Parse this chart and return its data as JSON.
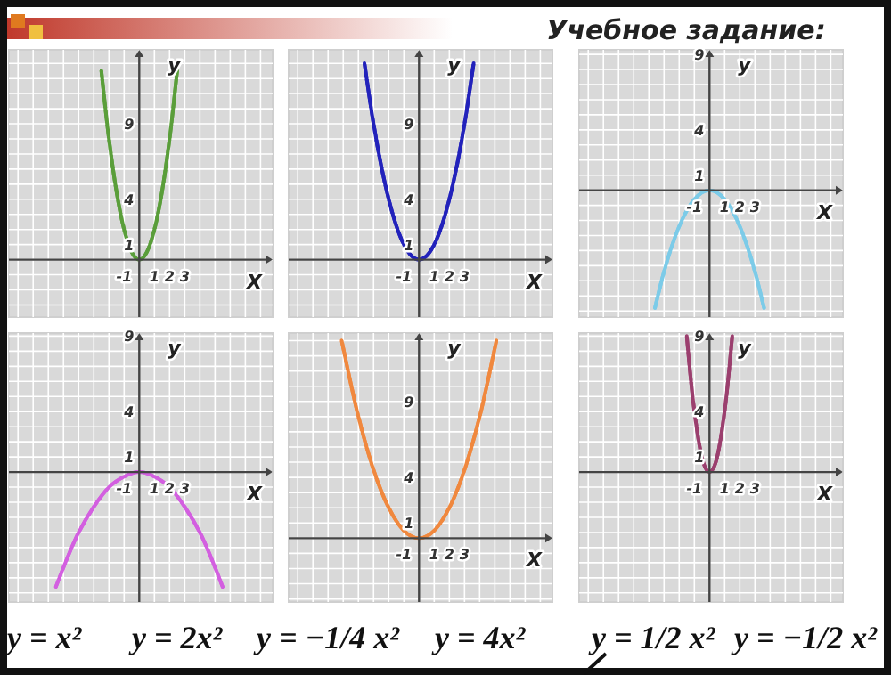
{
  "chart_data": [
    {
      "type": "other",
      "title": "Учебное задание:",
      "annotations": [
        "y = x²",
        "y = 2x²",
        "y = −1/4 x²",
        "y = 4x²",
        "y = 1/2 x²",
        "y = −1/2 x²"
      ]
    },
    {
      "type": "line",
      "xlabel": "X",
      "ylabel": "y",
      "grid": true,
      "xlim": [
        -8.6,
        8.8
      ],
      "ylim": [
        -3.8,
        13.9
      ],
      "xticks": [
        -1,
        1,
        2,
        3
      ],
      "yticks": [
        1,
        4,
        9
      ],
      "series": [
        {
          "color": "#5a9e3a",
          "x": [
            -2.5,
            -2,
            -1.5,
            -1,
            -0.5,
            0,
            0.5,
            1,
            1.5,
            2,
            2.5
          ],
          "values": [
            12.5,
            8,
            4.5,
            2,
            0.5,
            0,
            0.5,
            2,
            4.5,
            8,
            12.5
          ]
        }
      ]
    },
    {
      "type": "line",
      "xlabel": "X",
      "ylabel": "y",
      "grid": true,
      "xlim": [
        -8.6,
        8.8
      ],
      "ylim": [
        -3.8,
        13.9
      ],
      "xticks": [
        -1,
        1,
        2,
        3
      ],
      "yticks": [
        1,
        4,
        9
      ],
      "series": [
        {
          "color": "#2222bb",
          "x": [
            -3.6,
            -3,
            -2,
            -1,
            0,
            1,
            2,
            3,
            3.6
          ],
          "values": [
            13,
            9,
            4,
            1,
            0,
            1,
            4,
            9,
            13
          ]
        }
      ]
    },
    {
      "type": "line",
      "xlabel": "X",
      "ylabel": "y",
      "grid": true,
      "xlim": [
        -8.6,
        8.8
      ],
      "ylim": [
        -8.4,
        9.3
      ],
      "xticks": [
        -1,
        1,
        2,
        3
      ],
      "yticks": [
        1,
        4,
        9
      ],
      "series": [
        {
          "color": "#7ccbe8",
          "x": [
            -3.6,
            -3,
            -2,
            -1,
            0,
            1,
            2,
            3,
            3.6
          ],
          "values": [
            -7.8,
            -5.4,
            -2.4,
            -0.6,
            0,
            -0.6,
            -2.4,
            -5.4,
            -7.8
          ]
        }
      ]
    },
    {
      "type": "line",
      "xlabel": "X",
      "ylabel": "y",
      "grid": true,
      "xlim": [
        -8.6,
        8.8
      ],
      "ylim": [
        -8.6,
        9.2
      ],
      "xticks": [
        -1,
        1,
        2,
        3
      ],
      "yticks": [
        1,
        4,
        9
      ],
      "series": [
        {
          "color": "#d35fe0",
          "x": [
            -5.5,
            -4,
            -3,
            -2,
            -1,
            0,
            1,
            2,
            3,
            4,
            5.5
          ],
          "values": [
            -7.6,
            -4,
            -2.3,
            -1,
            -0.3,
            0,
            -0.3,
            -1,
            -2.3,
            -4,
            -7.6
          ]
        }
      ]
    },
    {
      "type": "line",
      "xlabel": "X",
      "ylabel": "y",
      "grid": true,
      "xlim": [
        -8.6,
        8.8
      ],
      "ylim": [
        -4.2,
        13.5
      ],
      "xticks": [
        -1,
        1,
        2,
        3
      ],
      "yticks": [
        1,
        4,
        9
      ],
      "series": [
        {
          "color": "#f0883e",
          "x": [
            -5.1,
            -4,
            -3,
            -2,
            -1,
            0,
            1,
            2,
            3,
            4,
            5.1
          ],
          "values": [
            13,
            8,
            4.5,
            2,
            0.5,
            0,
            0.5,
            2,
            4.5,
            8,
            13
          ]
        }
      ]
    },
    {
      "type": "line",
      "xlabel": "X",
      "ylabel": "y",
      "grid": true,
      "xlim": [
        -8.6,
        8.8
      ],
      "ylim": [
        -8.6,
        9.2
      ],
      "xticks": [
        -1,
        1,
        2,
        3
      ],
      "yticks": [
        1,
        4,
        9
      ],
      "series": [
        {
          "color": "#9b3f6e",
          "x": [
            -1.5,
            -1.2,
            -0.8,
            -0.4,
            0,
            0.4,
            0.8,
            1.2,
            1.5
          ],
          "values": [
            9,
            5.8,
            2.6,
            0.6,
            0,
            0.6,
            2.6,
            5.8,
            9
          ]
        }
      ]
    }
  ]
}
